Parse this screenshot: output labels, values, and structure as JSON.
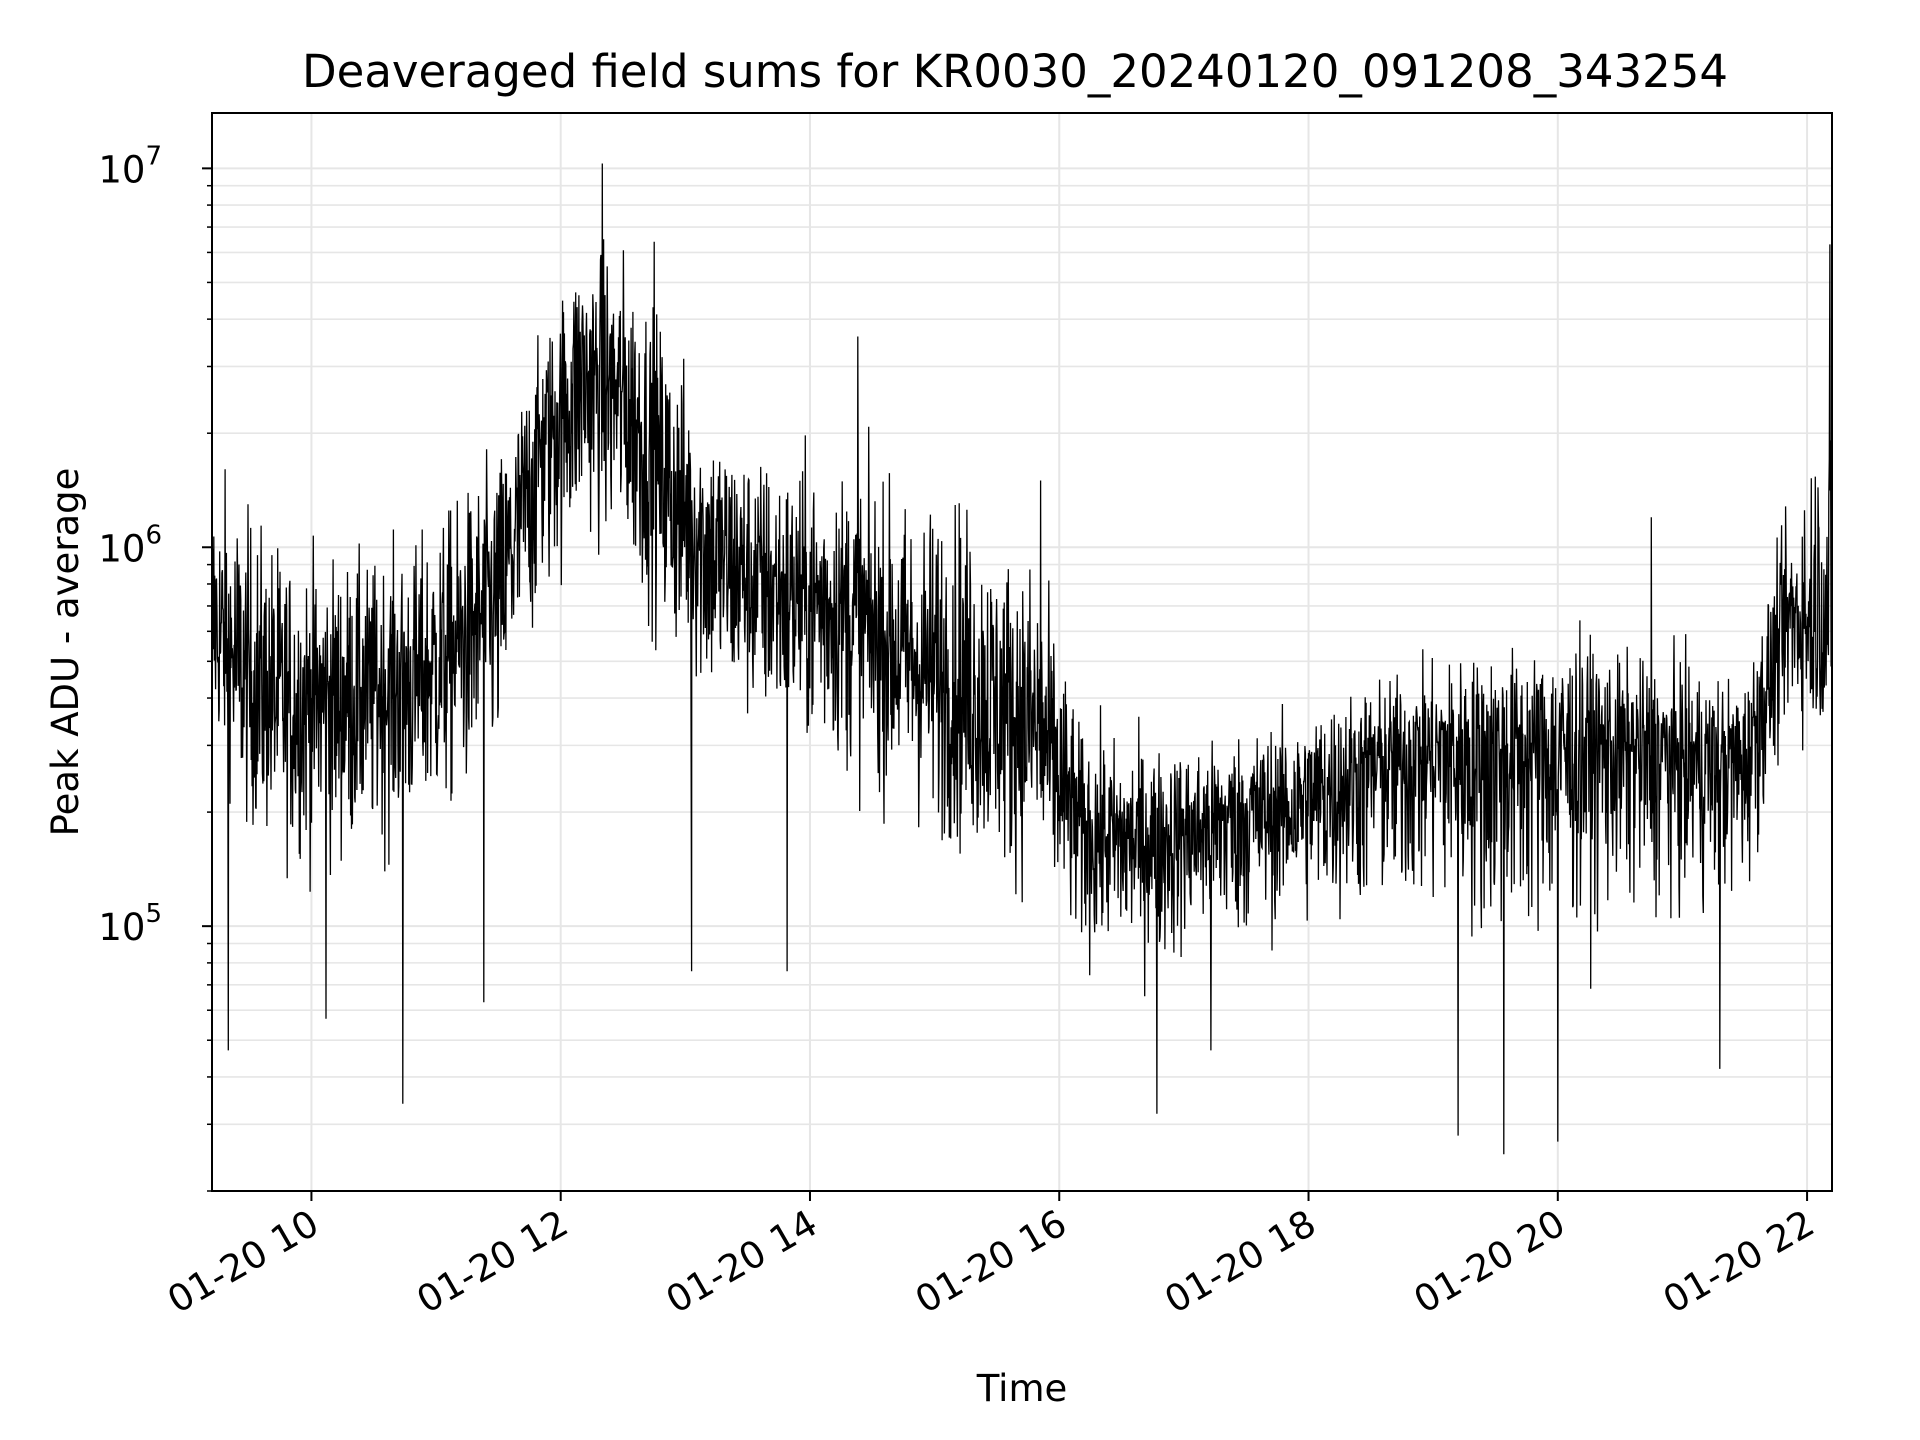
{
  "chart_data": {
    "type": "line",
    "title": "Deaveraged field sums for KR0030_20240120_091208_343254",
    "xlabel": "Time",
    "ylabel": "Peak ADU - average",
    "x_axis": {
      "kind": "datetime",
      "range": [
        "2024-01-20T09:12:08",
        "2024-01-20T22:12:00"
      ],
      "ticks": [
        {
          "value": "2024-01-20T10:00:00",
          "label": "01-20 10"
        },
        {
          "value": "2024-01-20T12:00:00",
          "label": "01-20 12"
        },
        {
          "value": "2024-01-20T14:00:00",
          "label": "01-20 14"
        },
        {
          "value": "2024-01-20T16:00:00",
          "label": "01-20 16"
        },
        {
          "value": "2024-01-20T18:00:00",
          "label": "01-20 18"
        },
        {
          "value": "2024-01-20T20:00:00",
          "label": "01-20 20"
        },
        {
          "value": "2024-01-20T22:00:00",
          "label": "01-20 22"
        }
      ]
    },
    "y_axis": {
      "scale": "log",
      "range": [
        20000,
        14000000
      ],
      "ticks": [
        {
          "value": 100000,
          "base": "10",
          "exp": "5"
        },
        {
          "value": 1000000,
          "base": "10",
          "exp": "6"
        },
        {
          "value": 10000000,
          "base": "10",
          "exp": "7"
        }
      ]
    },
    "grid": true,
    "legend": "none",
    "line_color": "#000000",
    "grid_color": "#e6e6e6",
    "series": [
      {
        "envelope": [
          {
            "x": "2024-01-20T09:12:08",
            "median": 600000,
            "low": 250000,
            "high": 2800000
          },
          {
            "x": "2024-01-20T09:30:00",
            "median": 420000,
            "low": 120000,
            "high": 2000000
          },
          {
            "x": "2024-01-20T09:50:00",
            "median": 380000,
            "low": 100000,
            "high": 1500000
          },
          {
            "x": "2024-01-20T10:10:00",
            "median": 400000,
            "low": 90000,
            "high": 1400000
          },
          {
            "x": "2024-01-20T10:30:00",
            "median": 430000,
            "low": 100000,
            "high": 1300000
          },
          {
            "x": "2024-01-20T10:50:00",
            "median": 450000,
            "low": 110000,
            "high": 1500000
          },
          {
            "x": "2024-01-20T11:10:00",
            "median": 550000,
            "low": 130000,
            "high": 2000000
          },
          {
            "x": "2024-01-20T11:30:00",
            "median": 750000,
            "low": 150000,
            "high": 2600000
          },
          {
            "x": "2024-01-20T11:50:00",
            "median": 1900000,
            "low": 400000,
            "high": 4500000
          },
          {
            "x": "2024-01-20T12:10:00",
            "median": 2800000,
            "low": 700000,
            "high": 9500000
          },
          {
            "x": "2024-01-20T12:30:00",
            "median": 2500000,
            "low": 600000,
            "high": 9000000
          },
          {
            "x": "2024-01-20T12:50:00",
            "median": 1500000,
            "low": 350000,
            "high": 6000000
          },
          {
            "x": "2024-01-20T13:10:00",
            "median": 1000000,
            "low": 250000,
            "high": 3500000
          },
          {
            "x": "2024-01-20T13:30:00",
            "median": 850000,
            "low": 220000,
            "high": 2600000
          },
          {
            "x": "2024-01-20T13:50:00",
            "median": 750000,
            "low": 200000,
            "high": 2400000
          },
          {
            "x": "2024-01-20T14:10:00",
            "median": 700000,
            "low": 180000,
            "high": 2600000
          },
          {
            "x": "2024-01-20T14:30:00",
            "median": 600000,
            "low": 150000,
            "high": 2300000
          },
          {
            "x": "2024-01-20T14:50:00",
            "median": 500000,
            "low": 120000,
            "high": 2000000
          },
          {
            "x": "2024-01-20T15:10:00",
            "median": 430000,
            "low": 100000,
            "high": 2500000
          },
          {
            "x": "2024-01-20T15:30:00",
            "median": 380000,
            "low": 90000,
            "high": 1600000
          },
          {
            "x": "2024-01-20T15:50:00",
            "median": 330000,
            "low": 80000,
            "high": 1500000
          },
          {
            "x": "2024-01-20T16:10:00",
            "median": 180000,
            "low": 60000,
            "high": 450000
          },
          {
            "x": "2024-01-20T16:30:00",
            "median": 170000,
            "low": 55000,
            "high": 400000
          },
          {
            "x": "2024-01-20T16:50:00",
            "median": 175000,
            "low": 55000,
            "high": 380000
          },
          {
            "x": "2024-01-20T17:10:00",
            "median": 185000,
            "low": 60000,
            "high": 380000
          },
          {
            "x": "2024-01-20T17:30:00",
            "median": 200000,
            "low": 65000,
            "high": 420000
          },
          {
            "x": "2024-01-20T17:50:00",
            "median": 210000,
            "low": 70000,
            "high": 430000
          },
          {
            "x": "2024-01-20T18:10:00",
            "median": 240000,
            "low": 70000,
            "high": 500000
          },
          {
            "x": "2024-01-20T18:30:00",
            "median": 270000,
            "low": 70000,
            "high": 550000
          },
          {
            "x": "2024-01-20T18:50:00",
            "median": 290000,
            "low": 70000,
            "high": 600000
          },
          {
            "x": "2024-01-20T19:10:00",
            "median": 300000,
            "low": 60000,
            "high": 650000
          },
          {
            "x": "2024-01-20T19:30:00",
            "median": 300000,
            "low": 50000,
            "high": 700000
          },
          {
            "x": "2024-01-20T19:50:00",
            "median": 300000,
            "low": 55000,
            "high": 700000
          },
          {
            "x": "2024-01-20T20:10:00",
            "median": 300000,
            "low": 60000,
            "high": 800000
          },
          {
            "x": "2024-01-20T20:30:00",
            "median": 300000,
            "low": 70000,
            "high": 650000
          },
          {
            "x": "2024-01-20T20:50:00",
            "median": 290000,
            "low": 70000,
            "high": 650000
          },
          {
            "x": "2024-01-20T21:10:00",
            "median": 280000,
            "low": 70000,
            "high": 600000
          },
          {
            "x": "2024-01-20T21:30:00",
            "median": 280000,
            "low": 80000,
            "high": 550000
          },
          {
            "x": "2024-01-20T21:50:00",
            "median": 650000,
            "low": 250000,
            "high": 1500000
          },
          {
            "x": "2024-01-20T22:12:00",
            "median": 600000,
            "low": 250000,
            "high": 6500000
          }
        ],
        "spikes": [
          {
            "x": "2024-01-20T09:20:00",
            "value": 47000
          },
          {
            "x": "2024-01-20T10:07:00",
            "value": 57000
          },
          {
            "x": "2024-01-20T10:44:00",
            "value": 34000
          },
          {
            "x": "2024-01-20T11:23:00",
            "value": 63000
          },
          {
            "x": "2024-01-20T12:20:00",
            "value": 10300000
          },
          {
            "x": "2024-01-20T12:45:00",
            "value": 6400000
          },
          {
            "x": "2024-01-20T13:03:00",
            "value": 76000
          },
          {
            "x": "2024-01-20T13:49:00",
            "value": 76000
          },
          {
            "x": "2024-01-20T14:23:00",
            "value": 3600000
          },
          {
            "x": "2024-01-20T15:51:00",
            "value": 1500000
          },
          {
            "x": "2024-01-20T16:47:00",
            "value": 32000
          },
          {
            "x": "2024-01-20T17:13:00",
            "value": 47000
          },
          {
            "x": "2024-01-20T19:12:00",
            "value": 28000
          },
          {
            "x": "2024-01-20T19:34:00",
            "value": 25000
          },
          {
            "x": "2024-01-20T20:00:00",
            "value": 27000
          },
          {
            "x": "2024-01-20T20:45:00",
            "value": 1200000
          },
          {
            "x": "2024-01-20T21:18:00",
            "value": 42000
          },
          {
            "x": "2024-01-20T22:11:00",
            "value": 6300000
          }
        ]
      }
    ]
  }
}
